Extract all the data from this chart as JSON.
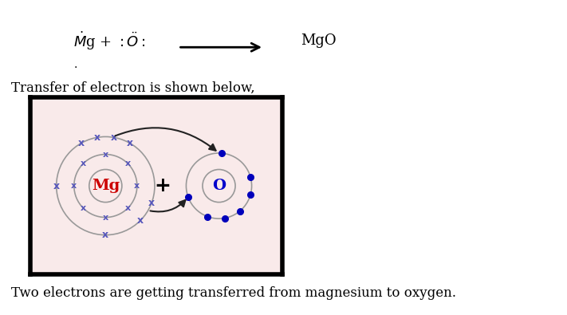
{
  "bg_color": "#ffffff",
  "box_bg": "#f9eaea",
  "subtitle_text": "Transfer of electron is shown below,",
  "footer_text": "Two electrons are getting transferred from magnesium to oxygen.",
  "mg_label": "Mg",
  "o_label": "O",
  "mg_color": "#cc0000",
  "o_color": "#0000cc",
  "orbit_color": "#999999",
  "electron_color": "#0000bb",
  "cross_color": "#5555bb",
  "arrow_color": "#222222",
  "fig_width": 7.11,
  "fig_height": 3.95,
  "dpi": 100
}
